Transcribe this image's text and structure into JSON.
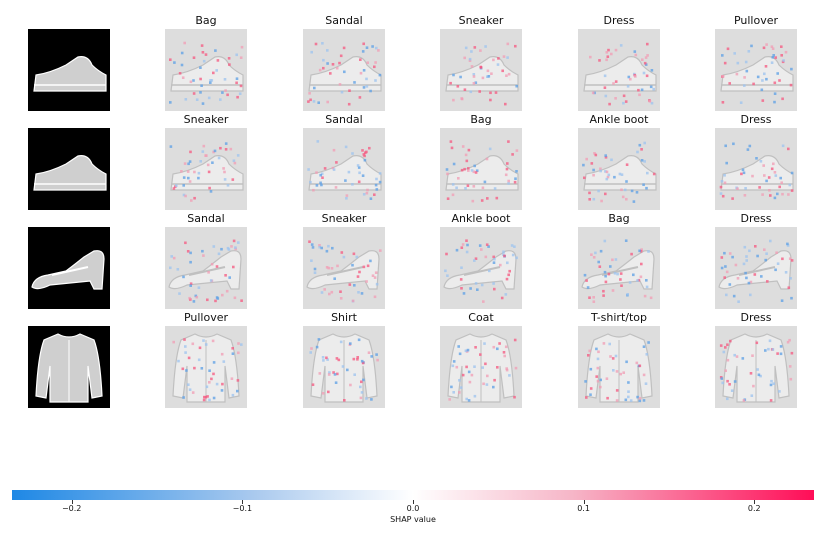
{
  "chart_data": {
    "type": "heatmap",
    "rows": [
      {
        "input_icon": "sneaker-silhouette",
        "explanations": [
          "Bag",
          "Sandal",
          "Sneaker",
          "Dress",
          "Pullover"
        ]
      },
      {
        "input_icon": "sneaker-silhouette",
        "explanations": [
          "Sneaker",
          "Sandal",
          "Bag",
          "Ankle boot",
          "Dress"
        ]
      },
      {
        "input_icon": "sandal-silhouette",
        "explanations": [
          "Sandal",
          "Sneaker",
          "Ankle boot",
          "Bag",
          "Dress"
        ]
      },
      {
        "input_icon": "pullover-silhouette",
        "explanations": [
          "Pullover",
          "Shirt",
          "Coat",
          "T-shirt/top",
          "Dress"
        ]
      }
    ],
    "colorbar": {
      "label": "SHAP value",
      "range": [
        -0.235,
        0.235
      ],
      "ticks": [
        {
          "value": -0.2,
          "label": "−0.2"
        },
        {
          "value": -0.1,
          "label": "−0.1"
        },
        {
          "value": 0.0,
          "label": "0.0"
        },
        {
          "value": 0.1,
          "label": "0.1"
        },
        {
          "value": 0.2,
          "label": "0.2"
        }
      ],
      "colors": {
        "negative": "#1e88e5",
        "zero": "#ffffff",
        "positive": "#ff0d57"
      }
    }
  }
}
